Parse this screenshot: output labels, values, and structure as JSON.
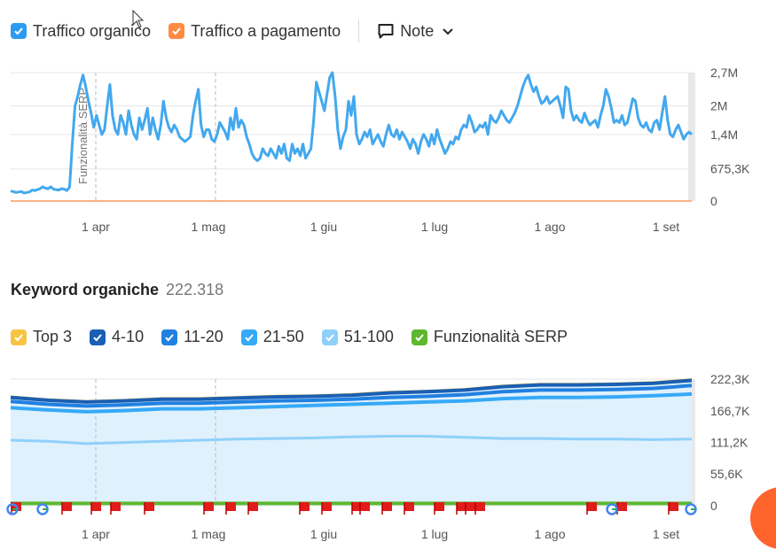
{
  "traffic_legend": {
    "organic": {
      "label": "Traffico organico",
      "color": "#2d9cf0",
      "checked": true
    },
    "paid": {
      "label": "Traffico a pagamento",
      "color": "#ff8c42",
      "checked": true
    },
    "notes": {
      "label": "Note",
      "icon": "comment-icon"
    }
  },
  "keywords_section": {
    "title": "Keyword organiche",
    "count": "222.318"
  },
  "keywords_legend": [
    {
      "label": "Top 3",
      "color": "#f8c343"
    },
    {
      "label": "4-10",
      "color": "#1a5fb4"
    },
    {
      "label": "11-20",
      "color": "#2180e0"
    },
    {
      "label": "21-50",
      "color": "#36a9f7"
    },
    {
      "label": "51-100",
      "color": "#8fd0fb"
    },
    {
      "label": "Funzionalità SERP",
      "color": "#5cb82e"
    }
  ],
  "chart_data": [
    {
      "type": "line",
      "x_tick_labels": [
        "1 apr",
        "1 mag",
        "1 giu",
        "1 lug",
        "1 ago",
        "1 set"
      ],
      "y_tick_labels": [
        "2,7M",
        "2M",
        "1,4M",
        "675,3K",
        "0"
      ],
      "ylim": [
        0,
        2700000
      ],
      "annotation": "Funzionalità SERP",
      "grid": true,
      "series": [
        {
          "name": "Traffico organico",
          "color": "#43a8ee",
          "values": [
            210000,
            200000,
            180000,
            190000,
            200000,
            170000,
            180000,
            190000,
            230000,
            220000,
            240000,
            260000,
            300000,
            270000,
            260000,
            300000,
            250000,
            240000,
            230000,
            260000,
            250000,
            220000,
            300000,
            1200000,
            2000000,
            2200000,
            2450000,
            2650000,
            2400000,
            2100000,
            1850000,
            1550000,
            1800000,
            1600000,
            1400000,
            1500000,
            2000000,
            2450000,
            1800000,
            1500000,
            1400000,
            1800000,
            1650000,
            1400000,
            1900000,
            1600000,
            1400000,
            1300000,
            1750000,
            1500000,
            1700000,
            1950000,
            1400000,
            1750000,
            1500000,
            1300000,
            1600000,
            2100000,
            1750000,
            1550000,
            1450000,
            1600000,
            1500000,
            1350000,
            1300000,
            1250000,
            1300000,
            1350000,
            1800000,
            2100000,
            2350000,
            1600000,
            1350000,
            1500000,
            1500000,
            1300000,
            1250000,
            1400000,
            1650000,
            1550000,
            1450000,
            1300000,
            1750000,
            1500000,
            1950000,
            1550000,
            1700000,
            1600000,
            1350000,
            1200000,
            1000000,
            900000,
            850000,
            900000,
            1100000,
            1000000,
            950000,
            1100000,
            1000000,
            900000,
            1150000,
            1000000,
            1200000,
            900000,
            850000,
            1200000,
            1000000,
            1100000,
            950000,
            1200000,
            900000,
            1000000,
            1100000,
            1700000,
            2500000,
            2300000,
            2100000,
            1900000,
            2250000,
            2600000,
            2700000,
            2200000,
            1500000,
            1100000,
            1350000,
            1500000,
            2100000,
            1800000,
            2200000,
            1400000,
            1200000,
            1300000,
            1450000,
            1350000,
            1500000,
            1200000,
            1300000,
            1400000,
            1250000,
            1150000,
            1400000,
            1600000,
            1400000,
            1350000,
            1500000,
            1300000,
            1450000,
            1350000,
            1250000,
            1100000,
            1300000,
            1200000,
            1000000,
            1250000,
            1400000,
            1300000,
            1150000,
            1400000,
            1200000,
            1500000,
            1300000,
            1150000,
            1000000,
            1100000,
            1250000,
            1200000,
            1350000,
            1300000,
            1500000,
            1600000,
            1550000,
            1800000,
            1650000,
            1450000,
            1500000,
            1600000,
            1550000,
            1650000,
            1400000,
            1800000,
            1700000,
            1650000,
            1750000,
            1900000,
            1800000,
            1700000,
            1650000,
            1750000,
            1850000,
            2000000,
            2200000,
            2400000,
            2550000,
            2650000,
            2450000,
            2300000,
            2400000,
            2200000,
            2050000,
            2100000,
            2200000,
            2050000,
            2100000,
            2150000,
            2200000,
            2000000,
            1750000,
            2400000,
            2350000,
            1900000,
            1700000,
            1800000,
            1700000,
            1650000,
            1850000,
            1700000,
            1600000,
            1650000,
            1700000,
            1550000,
            1800000,
            2000000,
            2350000,
            2200000,
            1950000,
            1650000,
            1700000,
            1650000,
            1800000,
            1600000,
            1650000,
            1900000,
            2150000,
            2100000,
            1750000,
            1600000,
            1550000,
            1650000,
            1500000,
            1450000,
            1650000,
            1700000,
            1500000,
            1850000,
            2200000,
            1700000,
            1400000,
            1350000,
            1500000,
            1600000,
            1450000,
            1300000,
            1400000,
            1450000,
            1400000
          ]
        },
        {
          "name": "Traffico a pagamento",
          "color": "#ffb088",
          "values": [
            0,
            0
          ]
        }
      ]
    },
    {
      "type": "area",
      "x_tick_labels": [
        "1 apr",
        "1 mag",
        "1 giu",
        "1 lug",
        "1 ago",
        "1 set"
      ],
      "y_tick_labels": [
        "222,3K",
        "166,7K",
        "111,2K",
        "55,6K",
        "0"
      ],
      "ylim": [
        0,
        222300
      ],
      "grid": true,
      "series": [
        {
          "name": "Top 3",
          "color": "#f8c343",
          "values": [
            192000,
            187000,
            184000,
            186000,
            189000,
            189000,
            191000,
            193000,
            194000,
            196000,
            200000,
            202000,
            205000,
            211000,
            214000,
            214000,
            215000,
            217000,
            222300
          ]
        },
        {
          "name": "4-10",
          "color": "#1a5fb4",
          "values": [
            190000,
            185000,
            182000,
            184000,
            187000,
            187000,
            189000,
            191000,
            192000,
            194000,
            198000,
            200000,
            203000,
            209000,
            212000,
            212000,
            213000,
            215000,
            220000
          ]
        },
        {
          "name": "11-20",
          "color": "#2180e0",
          "values": [
            183000,
            178000,
            175000,
            177000,
            180000,
            180000,
            182000,
            184000,
            185000,
            187000,
            190000,
            192000,
            195000,
            200000,
            203000,
            203000,
            204000,
            206000,
            211000
          ]
        },
        {
          "name": "21-50",
          "color": "#36a9f7",
          "values": [
            172000,
            168000,
            165000,
            167000,
            170000,
            170000,
            172000,
            174000,
            176000,
            178000,
            180000,
            182000,
            184000,
            188000,
            190000,
            190000,
            191000,
            193000,
            196000
          ]
        },
        {
          "name": "51-100",
          "color": "#8fd0fb",
          "values": [
            115000,
            113000,
            109000,
            111000,
            113000,
            115000,
            117000,
            118000,
            119000,
            121000,
            122000,
            122000,
            120000,
            118000,
            118000,
            117000,
            117000,
            116000,
            117000
          ]
        },
        {
          "name": "Funzionalità SERP",
          "color": "#5cb82e",
          "values": [
            4000,
            4000,
            4000,
            4000,
            4000,
            4000,
            4000,
            4000,
            4000,
            4000,
            4000,
            4000,
            4000,
            4000,
            4000,
            4000,
            4000,
            4000,
            4000
          ]
        }
      ]
    }
  ]
}
